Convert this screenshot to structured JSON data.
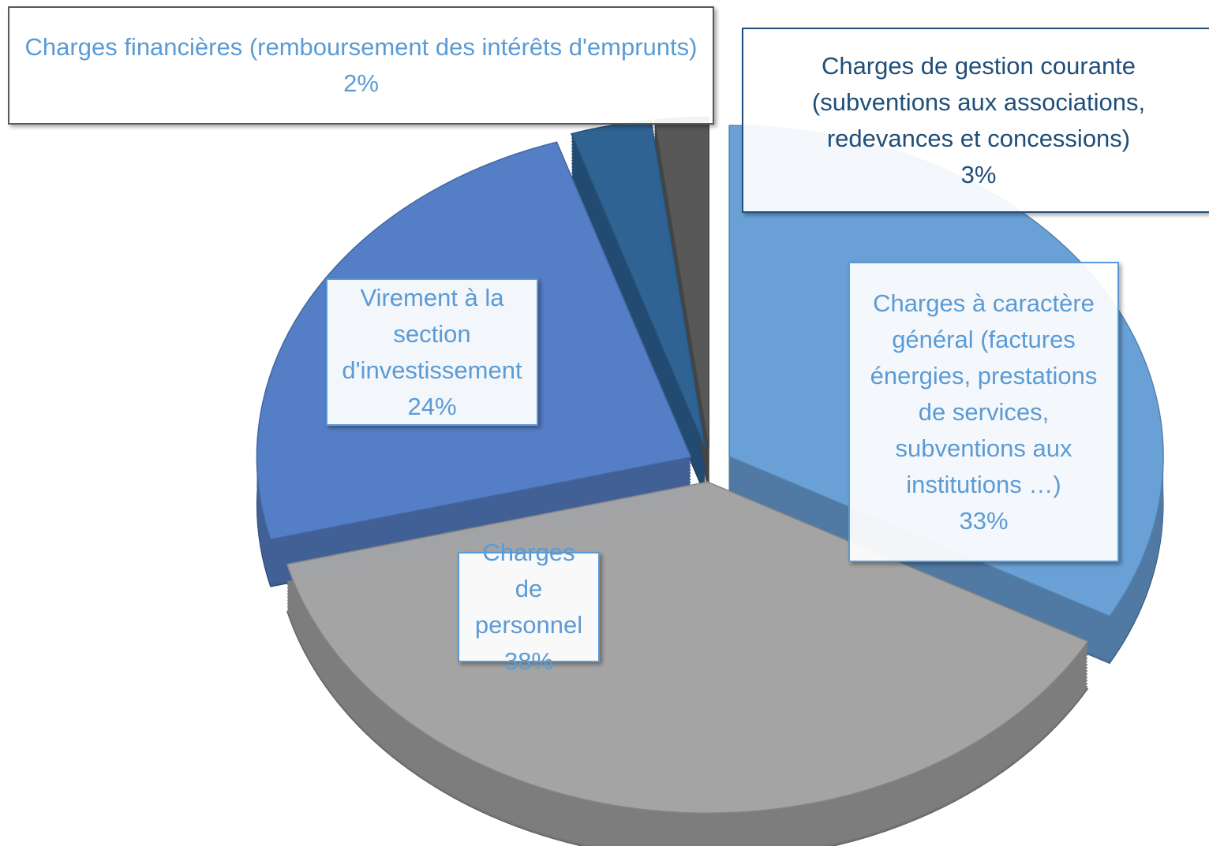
{
  "chart_data": {
    "type": "pie",
    "categories": [
      "Charges à caractère général (factures énergies, prestations de services, subventions aux institutions …)",
      "Charges de personnel",
      "Virement à la section d'investissement",
      "Charges de gestion courante (subventions aux associations, redevances et concessions)",
      "Charges financières (remboursement des intérêts d'emprunts)"
    ],
    "values": [
      33,
      38,
      24,
      3,
      2
    ],
    "value_labels": [
      "33%",
      "38%",
      "24%",
      "3%",
      "2%"
    ],
    "colors": [
      "#6aa3da",
      "#a6a6a6",
      "#5580c8",
      "#2f6496",
      "#5a5a5a"
    ]
  }
}
